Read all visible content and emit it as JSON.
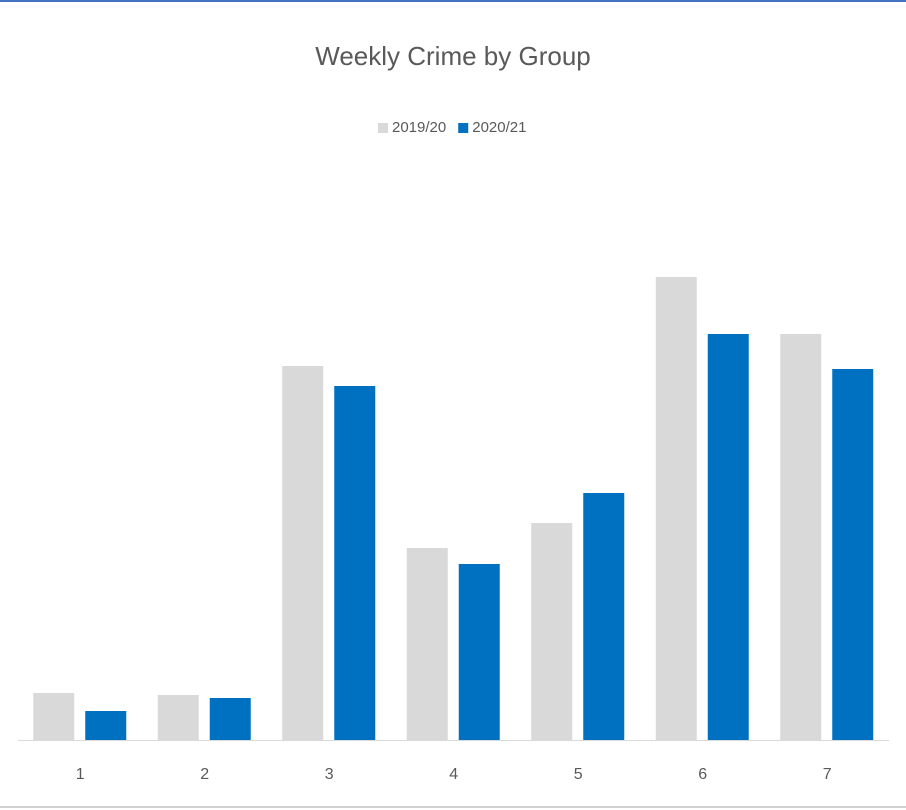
{
  "chart_data": {
    "type": "bar",
    "title": "Weekly Crime by Group",
    "categories": [
      "1",
      "2",
      "3",
      "4",
      "5",
      "6",
      "7"
    ],
    "series": [
      {
        "name": "2019/20",
        "color": "#d9d9d9",
        "values": [
          47,
          45,
          374,
          192,
          217,
          463,
          406
        ]
      },
      {
        "name": "2020/21",
        "color": "#0070c0",
        "values": [
          29,
          42,
          354,
          176,
          247,
          406,
          371
        ]
      }
    ],
    "ylim": [
      0,
      560
    ],
    "legend": "top"
  }
}
